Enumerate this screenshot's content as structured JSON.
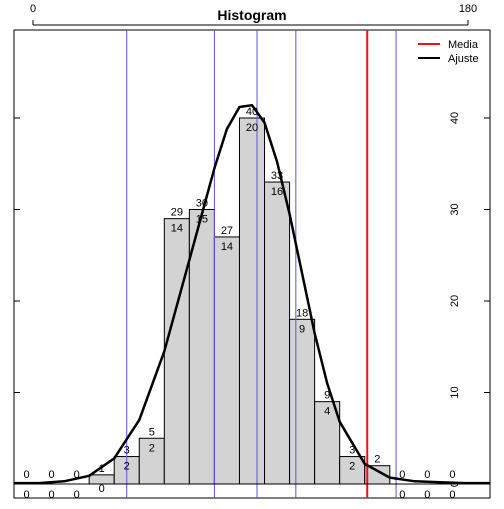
{
  "chart_data": {
    "type": "bar",
    "title": "Histogram",
    "top_axis_labels": [
      "0",
      "180"
    ],
    "y_ticks": [
      0,
      10,
      20,
      30,
      40
    ],
    "ylim": [
      0,
      45
    ],
    "xlim": [
      0,
      19
    ],
    "bins_upper": [
      0,
      0,
      0,
      1,
      3,
      5,
      29,
      30,
      27,
      40,
      33,
      18,
      9,
      3,
      2,
      0,
      0,
      0
    ],
    "bins_lower": [
      0,
      0,
      0,
      0,
      2,
      2,
      14,
      15,
      14,
      20,
      16,
      9,
      4,
      2,
      null,
      0,
      0,
      0
    ],
    "vertical_lines_blue": [
      4.5,
      8,
      9.7,
      11.25,
      15.25
    ],
    "media_line": 14.1,
    "colors": {
      "bar_fill": "#d3d3d3",
      "vline": "#5555dd",
      "media": "#ee1111",
      "curve": "#000000"
    },
    "legend": {
      "position": "top-right",
      "entries": [
        {
          "label": "Media",
          "color": "#ee1111"
        },
        {
          "label": "Ajuste",
          "color": "#000000"
        }
      ]
    },
    "fit_curve": {
      "x": [
        0,
        1,
        2,
        3,
        4,
        5,
        6,
        7,
        8,
        8.5,
        9,
        9.5,
        10,
        10.5,
        11,
        11.5,
        12,
        12.5,
        13,
        14,
        15,
        16,
        17,
        18,
        19
      ],
      "y": [
        0.1,
        0.1,
        0.3,
        0.9,
        2.8,
        7.0,
        14.5,
        24.5,
        34.5,
        38.8,
        41.2,
        41.4,
        39.5,
        35.2,
        29.5,
        23.0,
        16.5,
        11.0,
        6.8,
        2.2,
        0.7,
        0.3,
        0.2,
        0.1,
        0.1
      ]
    }
  }
}
